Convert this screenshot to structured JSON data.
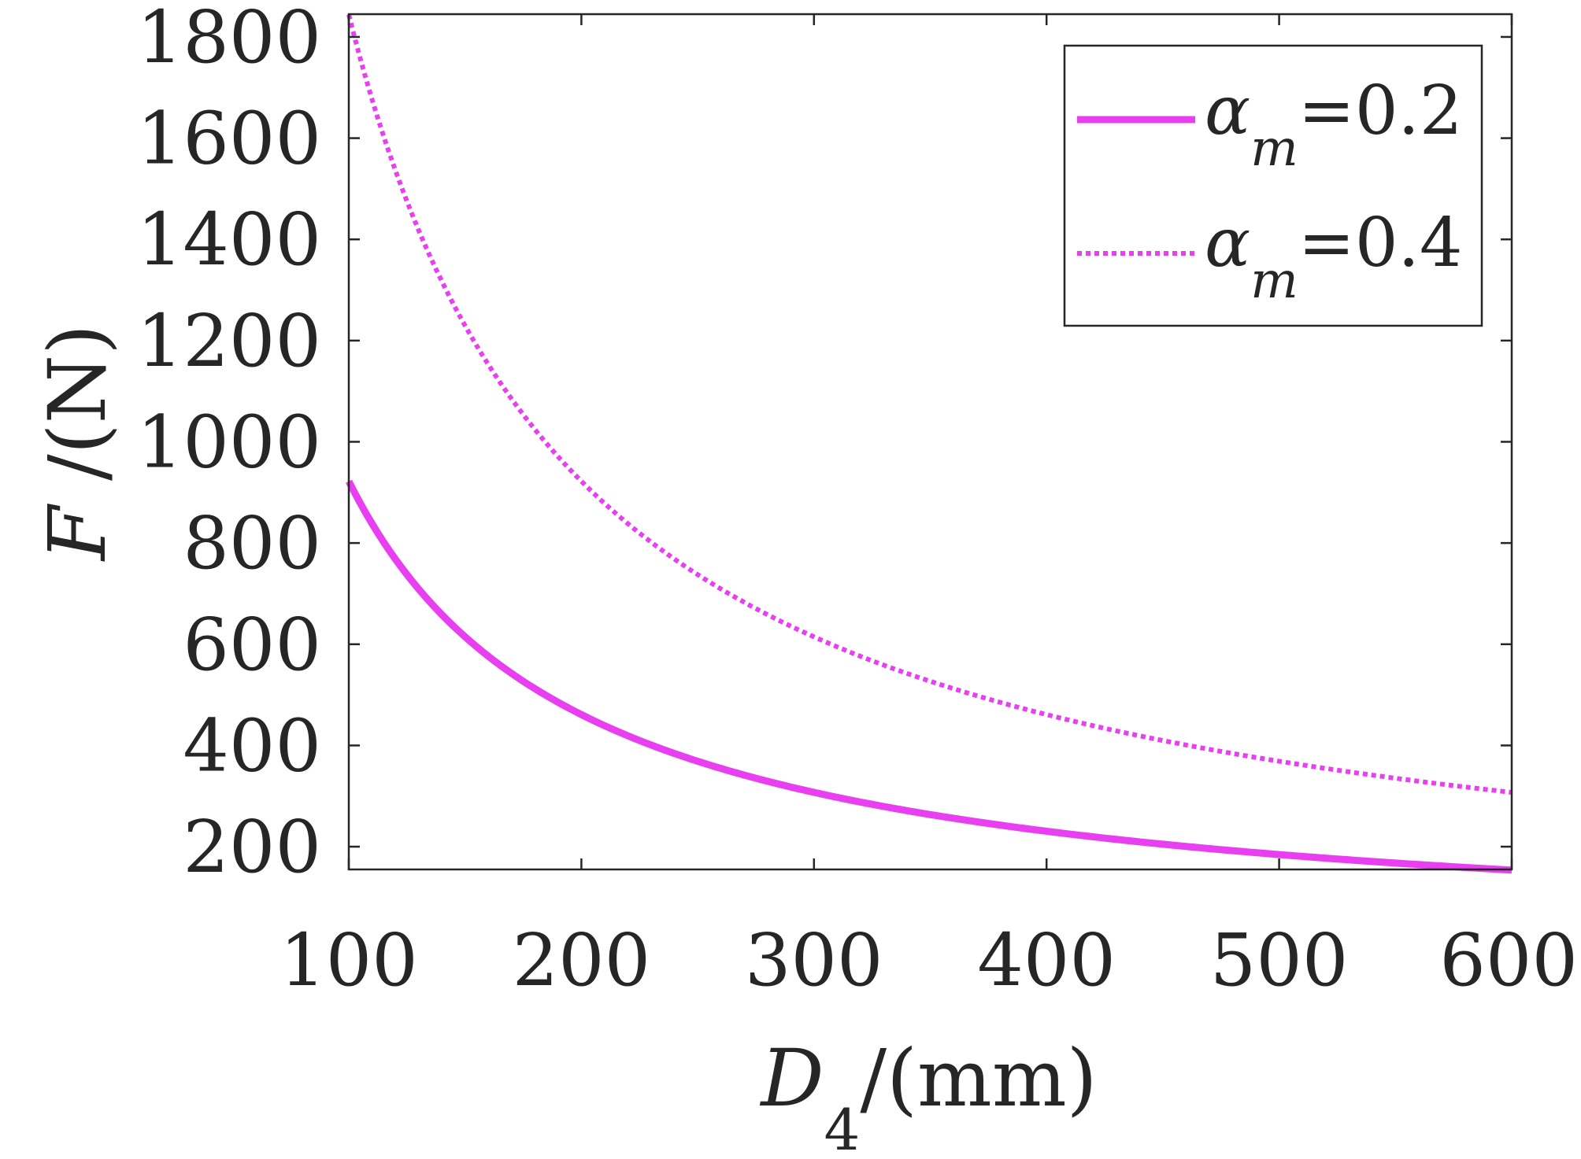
{
  "chart_data": {
    "type": "line",
    "xlabel": {
      "symbol": "D",
      "subscript": "4",
      "unit": "/(mm)"
    },
    "ylabel": {
      "symbol": "F",
      "unit": " /(N)"
    },
    "xlim": [
      100,
      600
    ],
    "ylim": [
      155,
      1845
    ],
    "x_ticks": [
      100,
      200,
      300,
      400,
      500,
      600
    ],
    "y_ticks": [
      200,
      400,
      600,
      800,
      1000,
      1200,
      1400,
      1600,
      1800
    ],
    "legend_position": "top-right",
    "grid": false,
    "series": [
      {
        "legend": {
          "symbol": "α",
          "subscript": "m",
          "value": "=0.2"
        },
        "line_style": "solid",
        "color": "#e83ff0",
        "x": [
          100,
          125,
          150,
          175,
          200,
          250,
          300,
          350,
          400,
          450,
          500,
          550,
          600
        ],
        "y": [
          922,
          738,
          615,
          527,
          461,
          369,
          307,
          263,
          230,
          205,
          184,
          168,
          154
        ]
      },
      {
        "legend": {
          "symbol": "α",
          "subscript": "m",
          "value": "=0.4"
        },
        "line_style": "dotted",
        "color": "#e83ff0",
        "x": [
          100,
          125,
          150,
          175,
          200,
          250,
          300,
          350,
          400,
          450,
          500,
          550,
          600
        ],
        "y": [
          1844,
          1475,
          1229,
          1054,
          922,
          738,
          615,
          527,
          461,
          410,
          369,
          335,
          307
        ]
      }
    ]
  }
}
